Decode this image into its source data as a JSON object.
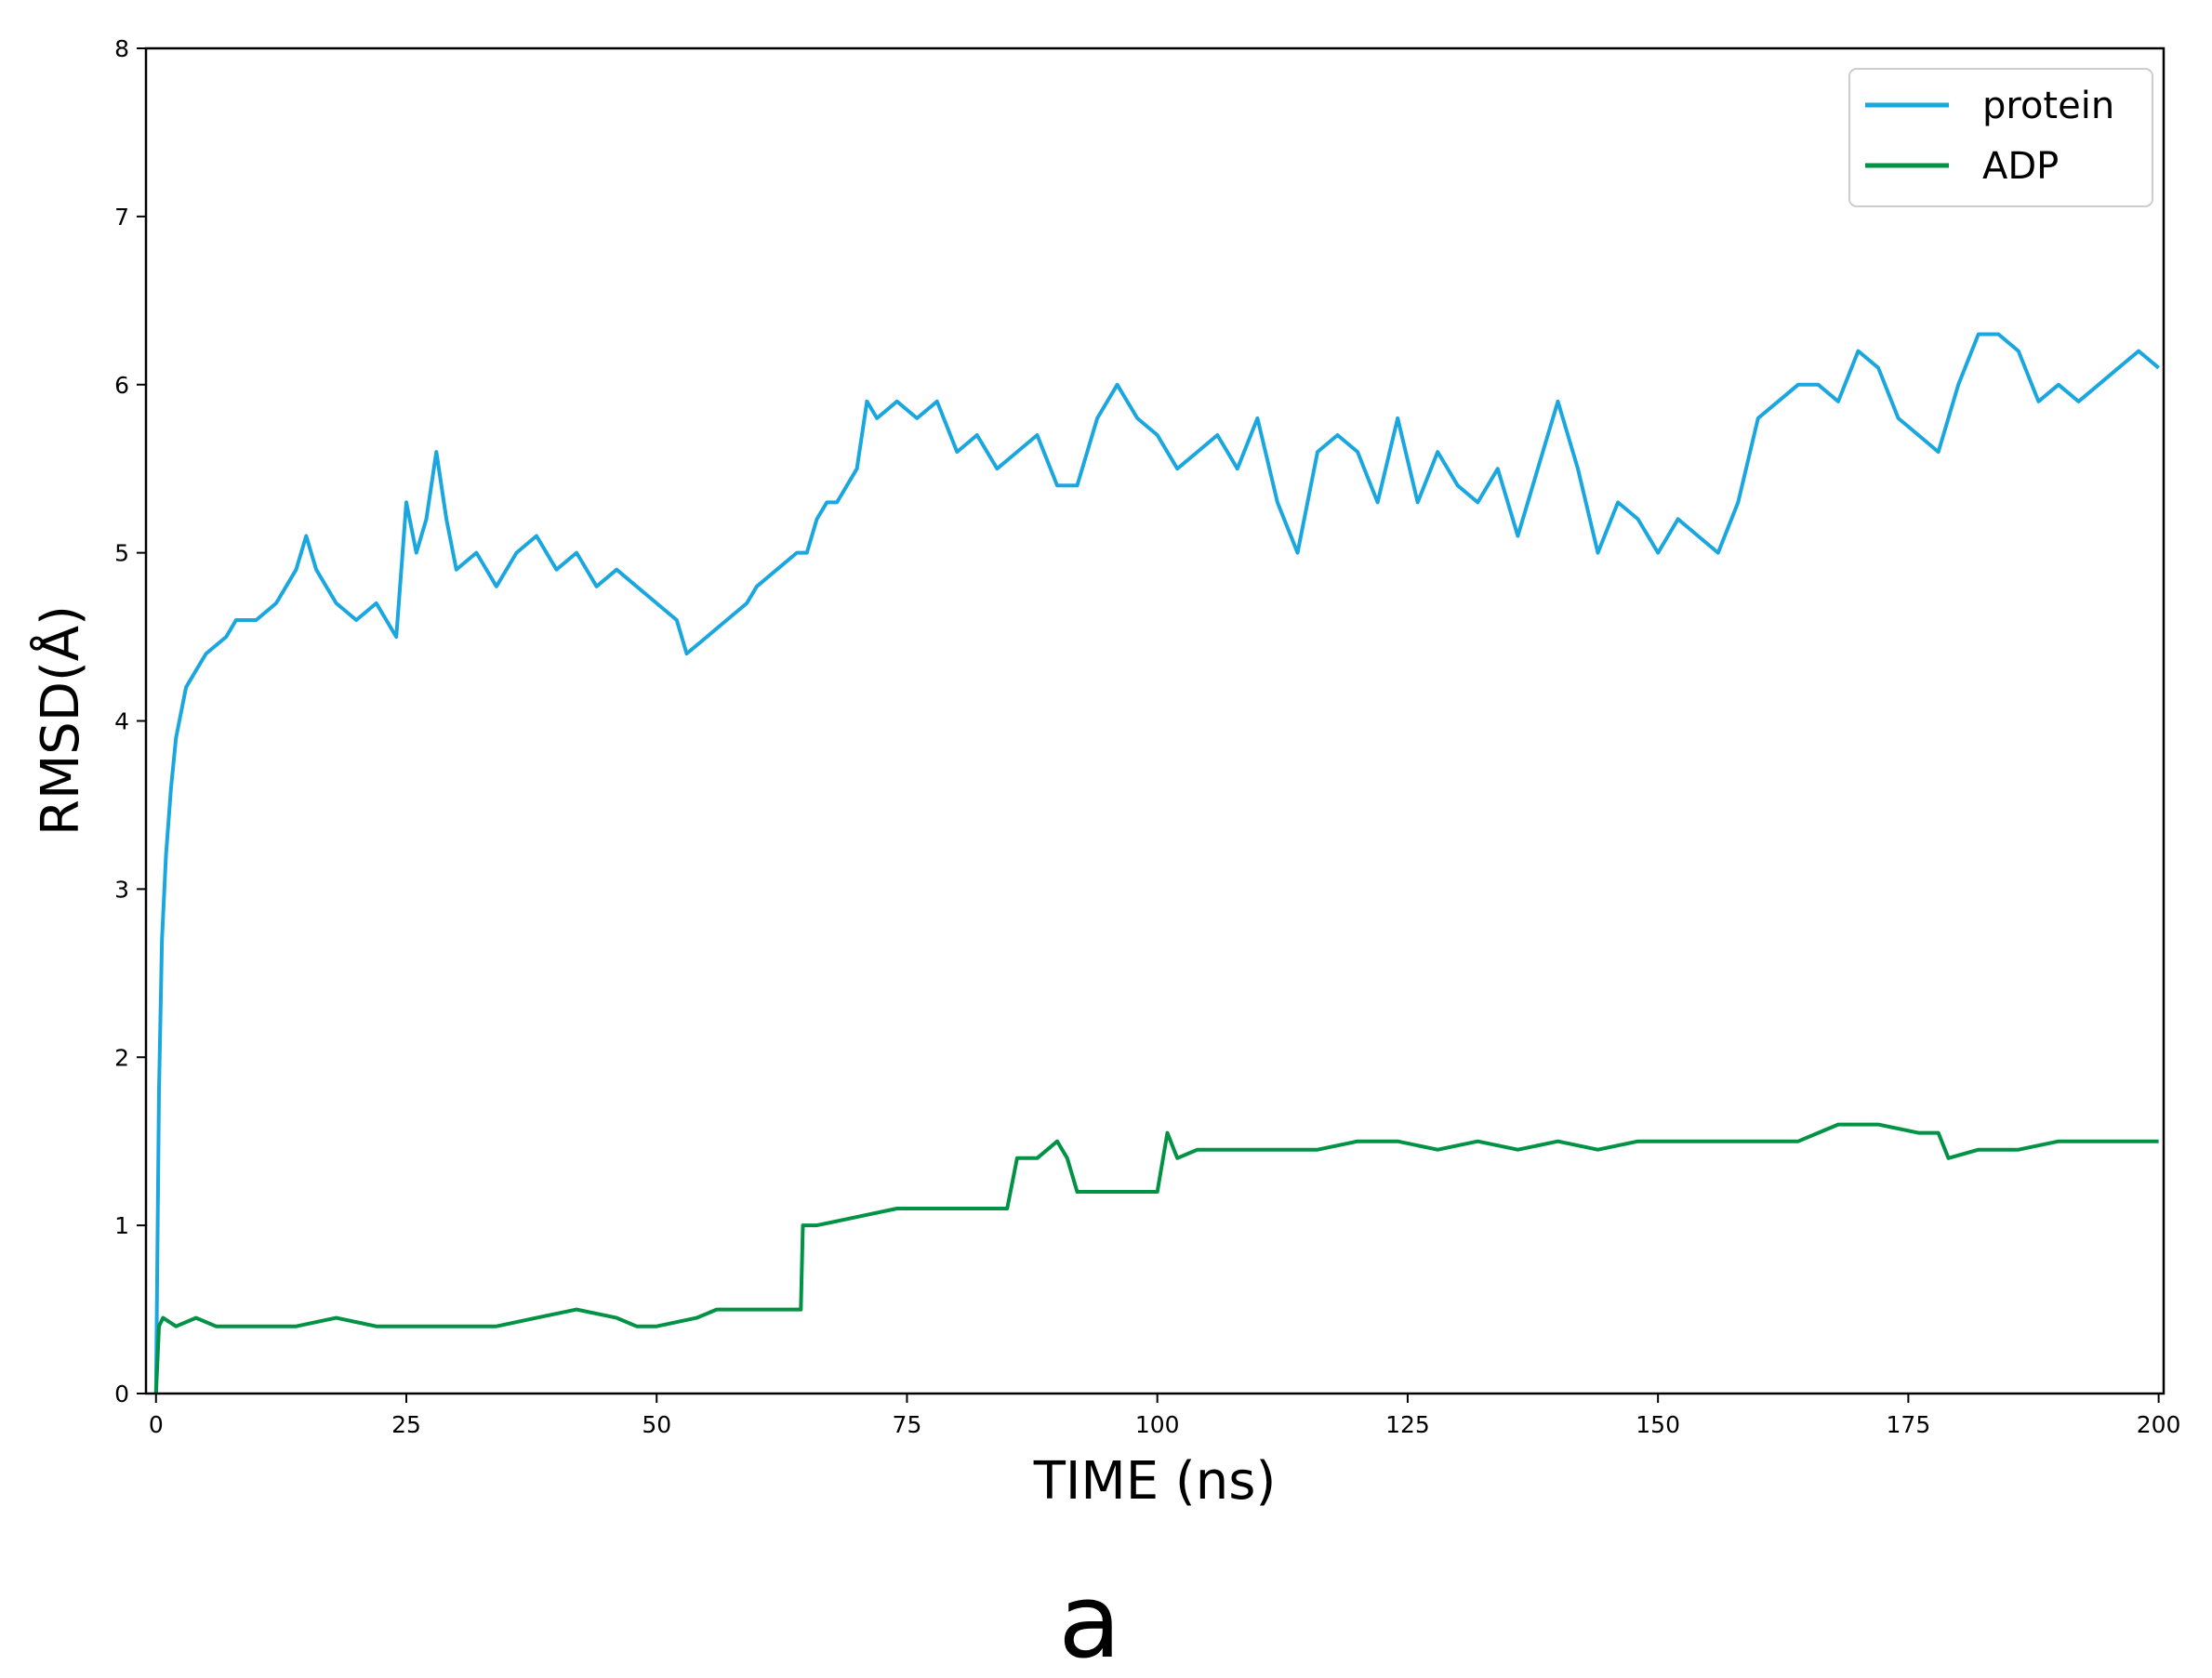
{
  "chart_data": {
    "type": "line",
    "title": "",
    "xlabel": "TIME (ns)",
    "ylabel": "RMSD(Å)",
    "panel_label": "a",
    "xlim": [
      -1,
      200.5
    ],
    "ylim": [
      0,
      8
    ],
    "xticks": [
      0,
      25,
      50,
      75,
      100,
      125,
      150,
      175,
      200
    ],
    "yticks": [
      0,
      1,
      2,
      3,
      4,
      5,
      6,
      7,
      8
    ],
    "grid": false,
    "legend_position": "top-right",
    "series": [
      {
        "name": "protein",
        "color": "#1AA7E0",
        "x": [
          0,
          0.3,
          0.6,
          1,
          1.5,
          2,
          3,
          4,
          5,
          6,
          7,
          8,
          10,
          12,
          14,
          15,
          16,
          18,
          20,
          22,
          24,
          25,
          26,
          27,
          28,
          29,
          30,
          32,
          34,
          36,
          38,
          40,
          42,
          44,
          46,
          48,
          50,
          52,
          53,
          55,
          57,
          59,
          60,
          62,
          64,
          65,
          66,
          67,
          68,
          70,
          71,
          72,
          74,
          76,
          78,
          80,
          82,
          84,
          86,
          88,
          90,
          92,
          94,
          96,
          98,
          100,
          102,
          104,
          106,
          108,
          110,
          112,
          114,
          116,
          118,
          120,
          122,
          124,
          126,
          128,
          130,
          132,
          134,
          136,
          138,
          140,
          142,
          144,
          146,
          148,
          150,
          152,
          154,
          156,
          158,
          160,
          162,
          164,
          166,
          168,
          170,
          172,
          174,
          176,
          178,
          180,
          182,
          184,
          186,
          188,
          190,
          192,
          194,
          196,
          198,
          200
        ],
        "values": [
          0.0,
          1.8,
          2.7,
          3.2,
          3.6,
          3.9,
          4.2,
          4.3,
          4.4,
          4.45,
          4.5,
          4.6,
          4.6,
          4.7,
          4.9,
          5.1,
          4.9,
          4.7,
          4.6,
          4.7,
          4.5,
          5.3,
          5.0,
          5.2,
          5.6,
          5.2,
          4.9,
          5.0,
          4.8,
          5.0,
          5.1,
          4.9,
          5.0,
          4.8,
          4.9,
          4.8,
          4.7,
          4.6,
          4.4,
          4.5,
          4.6,
          4.7,
          4.8,
          4.9,
          5.0,
          5.0,
          5.2,
          5.3,
          5.3,
          5.5,
          5.9,
          5.8,
          5.9,
          5.8,
          5.9,
          5.6,
          5.7,
          5.5,
          5.6,
          5.7,
          5.4,
          5.4,
          5.8,
          6.0,
          5.8,
          5.7,
          5.5,
          5.6,
          5.7,
          5.5,
          5.8,
          5.3,
          5.0,
          5.6,
          5.7,
          5.6,
          5.3,
          5.8,
          5.3,
          5.6,
          5.4,
          5.3,
          5.5,
          5.1,
          5.5,
          5.9,
          5.5,
          5.0,
          5.3,
          5.2,
          5.0,
          5.2,
          5.1,
          5.0,
          5.3,
          5.8,
          5.9,
          6.0,
          6.0,
          5.9,
          6.2,
          6.1,
          5.8,
          5.7,
          5.6,
          6.0,
          6.3,
          6.3,
          6.2,
          5.9,
          6.0,
          5.9,
          6.0,
          6.1,
          6.2,
          6.1
        ]
      },
      {
        "name": "ADP",
        "color": "#009245",
        "x": [
          0,
          0.3,
          0.7,
          2,
          4,
          6,
          8,
          10,
          14,
          18,
          22,
          26,
          30,
          34,
          38,
          42,
          46,
          48,
          50,
          54,
          56,
          58,
          60,
          62,
          64.4,
          64.6,
          66,
          70,
          74,
          78,
          82,
          85,
          86,
          88,
          90,
          91,
          92,
          96,
          100,
          101,
          102,
          104,
          108,
          112,
          116,
          120,
          124,
          128,
          132,
          136,
          140,
          144,
          148,
          152,
          156,
          160,
          164,
          166,
          168,
          172,
          176,
          178,
          179,
          182,
          186,
          190,
          194,
          198,
          200
        ],
        "values": [
          0.0,
          0.4,
          0.45,
          0.4,
          0.45,
          0.4,
          0.4,
          0.4,
          0.4,
          0.45,
          0.4,
          0.4,
          0.4,
          0.4,
          0.45,
          0.5,
          0.45,
          0.4,
          0.4,
          0.45,
          0.5,
          0.5,
          0.5,
          0.5,
          0.5,
          1.0,
          1.0,
          1.05,
          1.1,
          1.1,
          1.1,
          1.1,
          1.4,
          1.4,
          1.5,
          1.4,
          1.2,
          1.2,
          1.2,
          1.55,
          1.4,
          1.45,
          1.45,
          1.45,
          1.45,
          1.5,
          1.5,
          1.45,
          1.5,
          1.45,
          1.5,
          1.45,
          1.5,
          1.5,
          1.5,
          1.5,
          1.5,
          1.55,
          1.6,
          1.6,
          1.55,
          1.55,
          1.4,
          1.45,
          1.45,
          1.5,
          1.5,
          1.5,
          1.5
        ]
      }
    ]
  }
}
